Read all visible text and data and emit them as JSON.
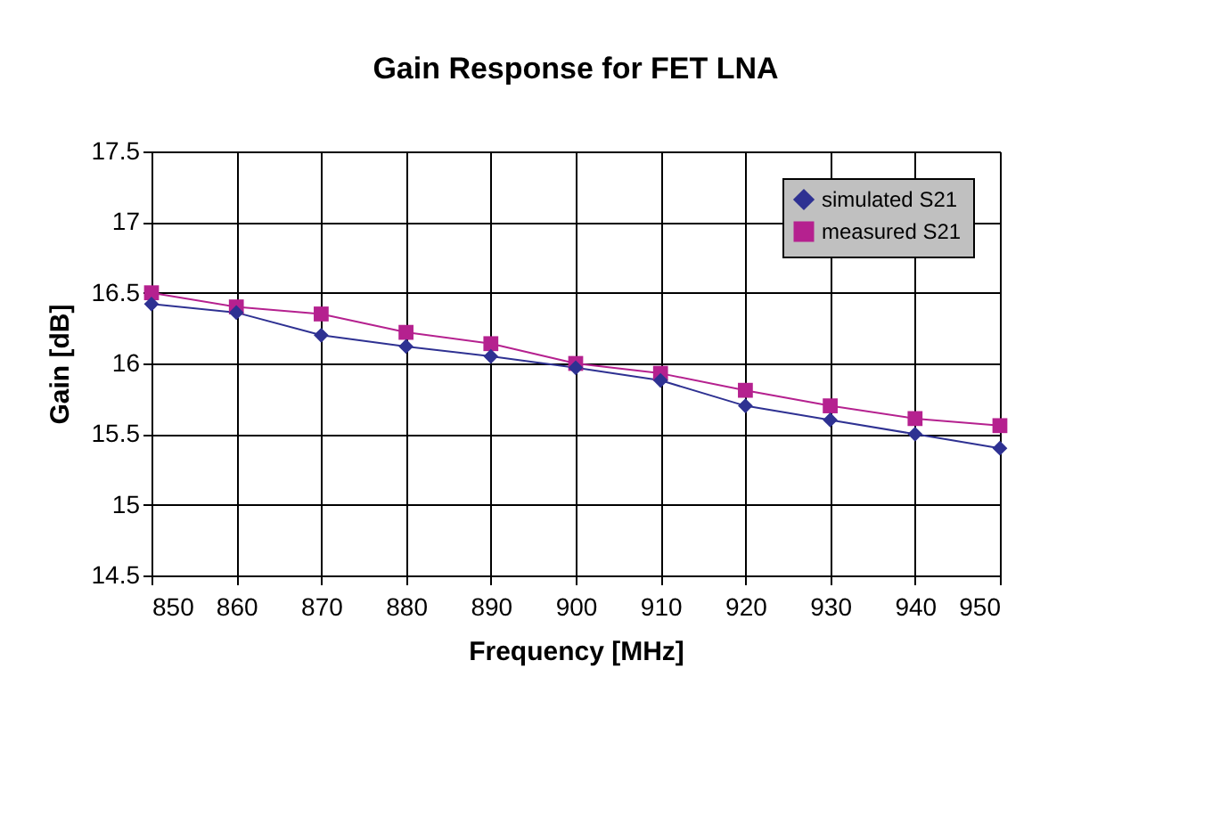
{
  "chart_data": {
    "type": "line",
    "title": "Gain Response for FET LNA",
    "xlabel": "Frequency [MHz]",
    "ylabel": "Gain [dB]",
    "x": [
      850,
      860,
      870,
      880,
      890,
      900,
      910,
      920,
      930,
      940,
      950
    ],
    "series": [
      {
        "name": "simulated S21",
        "color": "#2e3192",
        "marker": "diamond",
        "values": [
          16.42,
          16.36,
          16.2,
          16.12,
          16.05,
          15.97,
          15.88,
          15.7,
          15.6,
          15.5,
          15.4
        ]
      },
      {
        "name": "measured S21",
        "color": "#b5218f",
        "marker": "square",
        "values": [
          16.5,
          16.4,
          16.35,
          16.22,
          16.14,
          16.0,
          15.93,
          15.81,
          15.7,
          15.61,
          15.56
        ]
      }
    ],
    "xlim": [
      850,
      950
    ],
    "xticks": [
      850,
      860,
      870,
      880,
      890,
      900,
      910,
      920,
      930,
      940,
      950
    ],
    "ylim": [
      14.5,
      17.5
    ],
    "yticks": [
      14.5,
      15,
      15.5,
      16,
      16.5,
      17,
      17.5
    ],
    "grid": true,
    "legend": "top right",
    "line_style": "solid"
  }
}
